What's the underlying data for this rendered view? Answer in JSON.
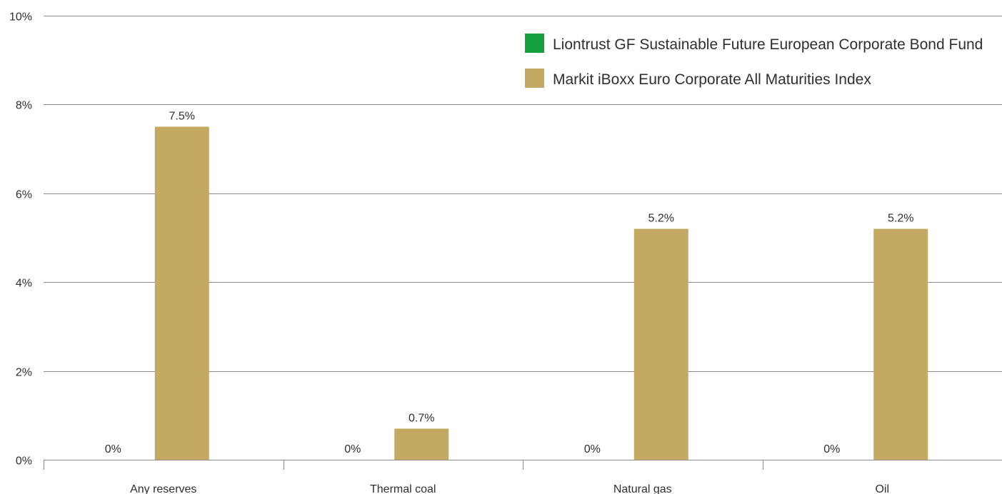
{
  "chart_data": {
    "type": "bar",
    "categories": [
      "Any reserves",
      "Thermal coal",
      "Natural gas",
      "Oil"
    ],
    "series": [
      {
        "name": "Liontrust GF Sustainable Future European Corporate Bond Fund",
        "values": [
          0,
          0,
          0,
          0
        ],
        "labels": [
          "0%",
          "0%",
          "0%",
          "0%"
        ],
        "color": "#14a03c"
      },
      {
        "name": "Markit iBoxx Euro Corporate All Maturities Index",
        "values": [
          7.5,
          0.7,
          5.2,
          5.2
        ],
        "labels": [
          "7.5%",
          "0.7%",
          "5.2%",
          "5.2%"
        ],
        "color": "#c4a962"
      }
    ],
    "ylim": [
      0,
      10
    ],
    "yticks": [
      0,
      2,
      4,
      6,
      8,
      10
    ],
    "ytick_labels": [
      "0%",
      "2%",
      "4%",
      "6%",
      "8%",
      "10%"
    ],
    "grid": true,
    "legend_position": "top-right",
    "gridline_color": "#8c8c8c"
  }
}
